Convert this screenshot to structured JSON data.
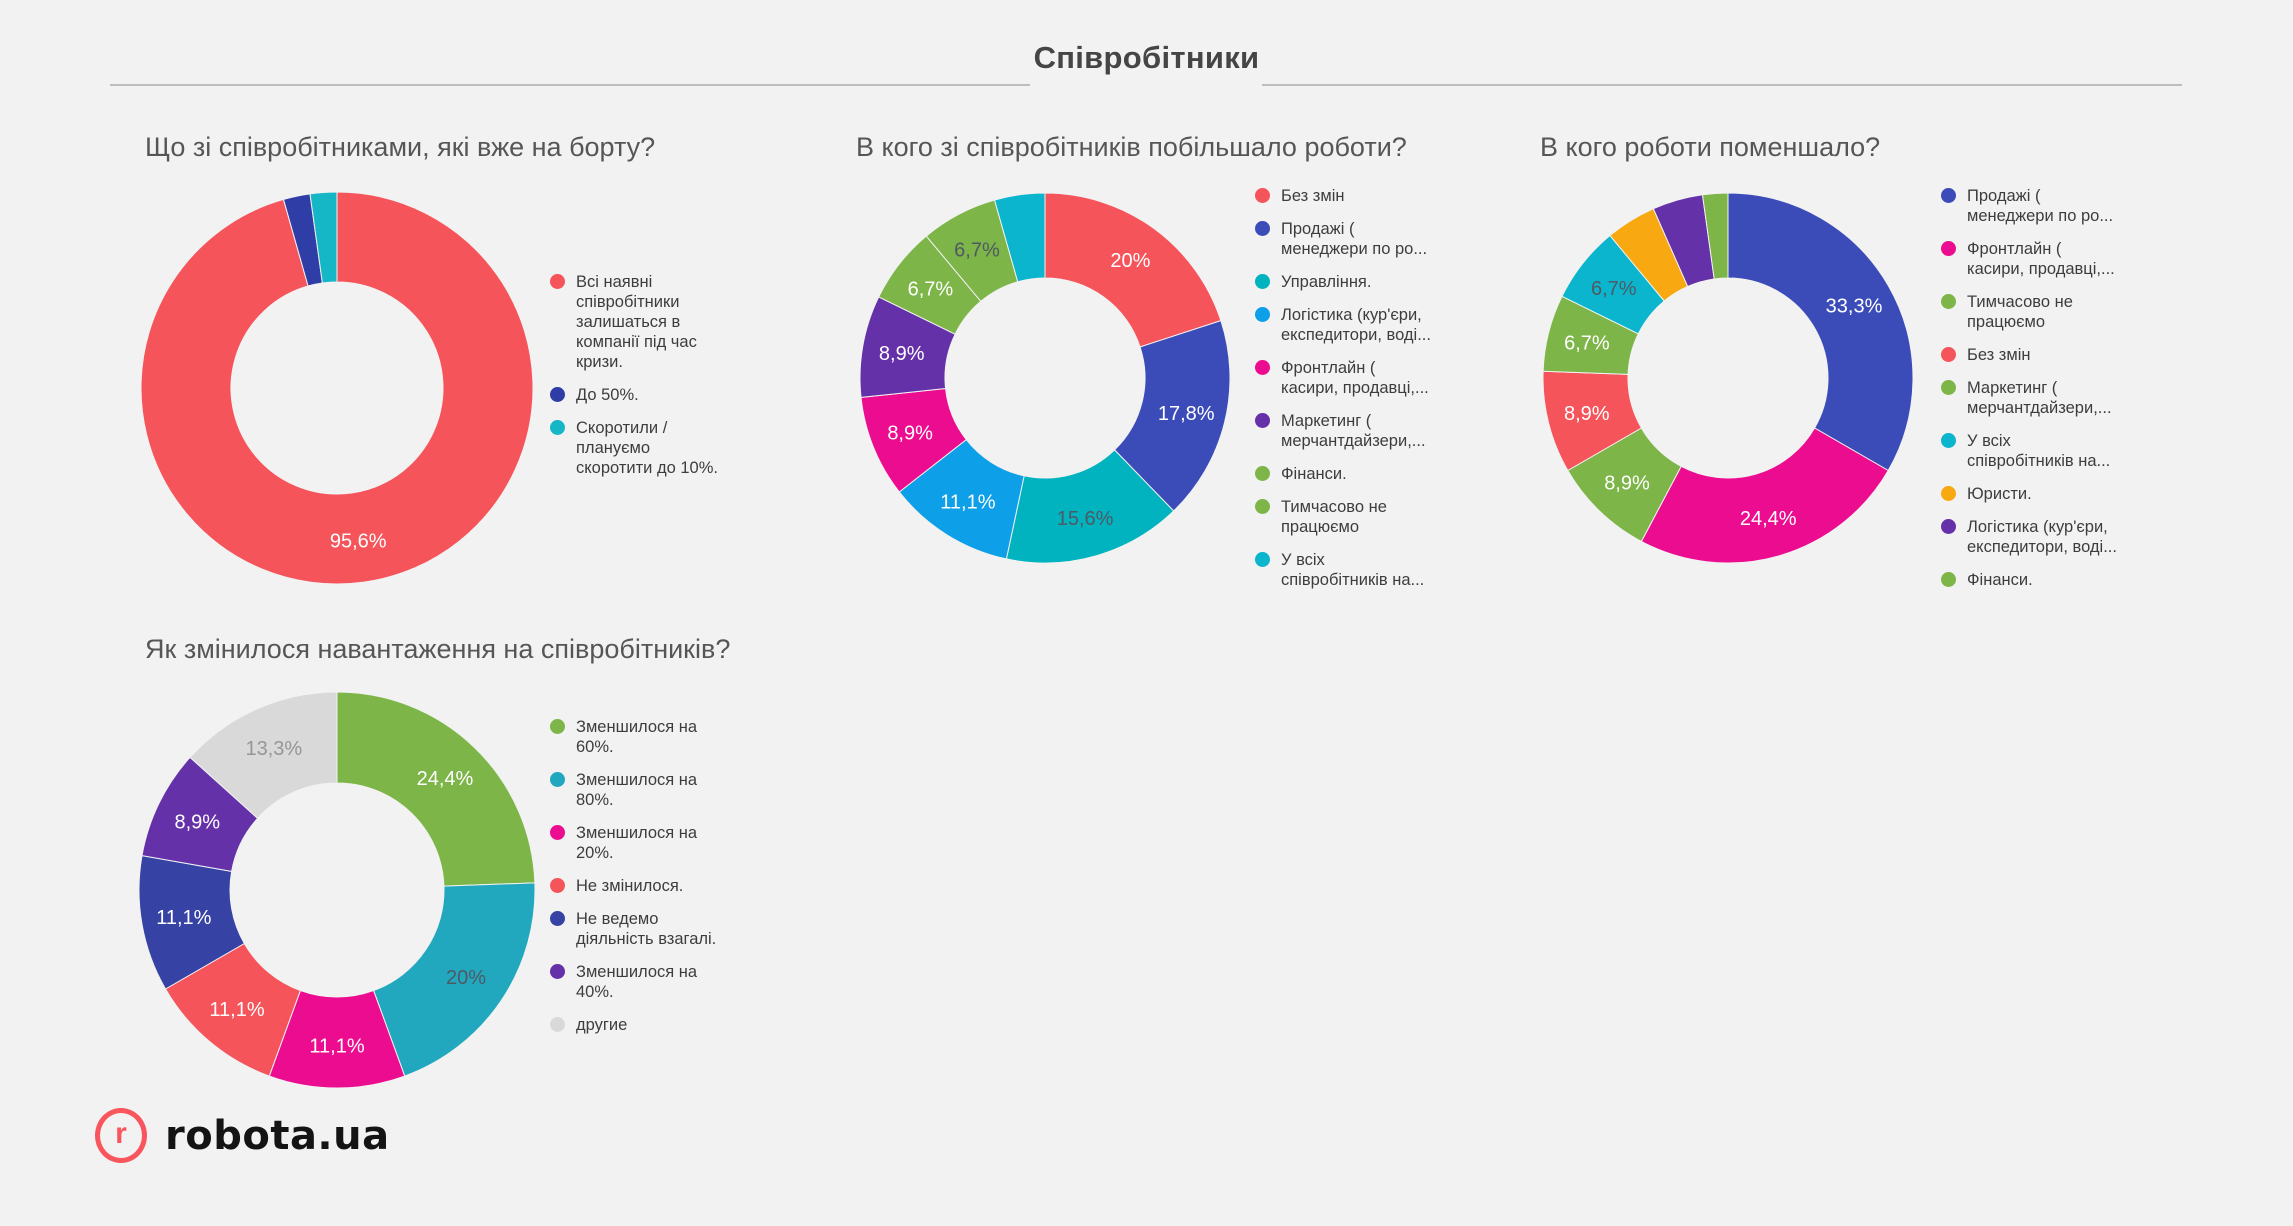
{
  "page": {
    "title": "Співробітники"
  },
  "logo": {
    "mark": "r",
    "text": "robota.ua",
    "accent_color": "#f8555c"
  },
  "background_color": "#f2f2f2",
  "chart_data": [
    {
      "type": "pie",
      "subtype": "donut",
      "title": "Що зі співробітниками, які вже на борту?",
      "legend_position": "right",
      "slices": [
        {
          "label": "Всі наявні співробітники залишаться в компанії під час кризи.",
          "lines": [
            "Всі наявні",
            "співробітники",
            "залишаться в",
            "компанії під час",
            "кризи."
          ],
          "value": 95.6,
          "display": "95,6%",
          "color": "#f6545b",
          "label_color": "#ffffff"
        },
        {
          "label": "До 50%.",
          "lines": [
            "До 50%."
          ],
          "value": 2.2,
          "display": "",
          "color": "#2f3ea6"
        },
        {
          "label": "Скоротили / плануємо скоротити до 10%.",
          "lines": [
            "Скоротили /",
            "плануємо",
            "скоротити до 10%."
          ],
          "value": 2.2,
          "display": "",
          "color": "#15b7c6"
        }
      ]
    },
    {
      "type": "pie",
      "subtype": "donut",
      "title": "В кого зі співробітників побільшало роботи?",
      "legend_position": "right",
      "slices": [
        {
          "label": "Без змін",
          "lines": [
            "Без змін"
          ],
          "value": 20,
          "display": "20%",
          "color": "#f6545b",
          "label_color": "#ffffff"
        },
        {
          "label": "Продажі ( менеджери по ро...",
          "lines": [
            "Продажі (",
            "менеджери по ро..."
          ],
          "value": 17.8,
          "display": "17,8%",
          "color": "#3b4cb8",
          "label_color": "#ffffff"
        },
        {
          "label": "Управління.",
          "lines": [
            "Управління."
          ],
          "value": 15.6,
          "display": "15,6%",
          "color": "#00b3bf",
          "label_color": "#4e5a63"
        },
        {
          "label": "Логістика (кур'єри, експедитори, воді...",
          "lines": [
            "Логістика (кур'єри,",
            "експедитори, воді..."
          ],
          "value": 11.1,
          "display": "11,1%",
          "color": "#0d9fe8",
          "label_color": "#ffffff"
        },
        {
          "label": "Фронтлайн ( касири, продавці,...",
          "lines": [
            "Фронтлайн (",
            "касири, продавці,..."
          ],
          "value": 8.9,
          "display": "8,9%",
          "color": "#ec0c8f",
          "label_color": "#ffffff"
        },
        {
          "label": "Маркетинг ( мерчантдайзери,...",
          "lines": [
            "Маркетинг (",
            "мерчантдайзери,..."
          ],
          "value": 8.9,
          "display": "8,9%",
          "color": "#6531a9",
          "label_color": "#ffffff"
        },
        {
          "label": "Фінанси.",
          "lines": [
            "Фінанси."
          ],
          "value": 6.7,
          "display": "6,7%",
          "color": "#7db548",
          "label_color": "#ffffff"
        },
        {
          "label": "Тимчасово не працюємо",
          "lines": [
            "Тимчасово не",
            "працюємо"
          ],
          "value": 6.7,
          "display": "6,7%",
          "color": "#7db548",
          "label_color": "#4e5a63"
        },
        {
          "label": "У всіх співробітників на...",
          "lines": [
            "У всіх",
            "співробітників на..."
          ],
          "value": 4.4,
          "display": "",
          "color": "#0ab5cd"
        }
      ]
    },
    {
      "type": "pie",
      "subtype": "donut",
      "title": "В кого роботи поменшало?",
      "legend_position": "right",
      "slices": [
        {
          "label": "Продажі ( менеджери по ро...",
          "lines": [
            "Продажі (",
            "менеджери по ро..."
          ],
          "value": 33.3,
          "display": "33,3%",
          "color": "#3b4cb8",
          "label_color": "#ffffff"
        },
        {
          "label": "Фронтлайн ( касири, продавці,...",
          "lines": [
            "Фронтлайн (",
            "касири, продавці,..."
          ],
          "value": 24.4,
          "display": "24,4%",
          "color": "#ec0c8f",
          "label_color": "#ffffff"
        },
        {
          "label": "Тимчасово не працюємо",
          "lines": [
            "Тимчасово не",
            "працюємо"
          ],
          "value": 8.9,
          "display": "8,9%",
          "color": "#7db548",
          "label_color": "#ffffff"
        },
        {
          "label": "Без змін",
          "lines": [
            "Без змін"
          ],
          "value": 8.9,
          "display": "8,9%",
          "color": "#f6545b",
          "label_color": "#ffffff"
        },
        {
          "label": "Маркетинг ( мерчантдайзери,...",
          "lines": [
            "Маркетинг (",
            "мерчантдайзери,..."
          ],
          "value": 6.7,
          "display": "6,7%",
          "color": "#7db548",
          "label_color": "#ffffff"
        },
        {
          "label": "У всіх співробітників на...",
          "lines": [
            "У всіх",
            "співробітників на..."
          ],
          "value": 6.7,
          "display": "6,7%",
          "color": "#0ab5cd",
          "label_color": "#4e5a63"
        },
        {
          "label": "Юристи.",
          "lines": [
            "Юристи."
          ],
          "value": 4.4,
          "display": "",
          "color": "#f8a912"
        },
        {
          "label": "Логістика (кур'єри, експедитори, воді...",
          "lines": [
            "Логістика (кур'єри,",
            "експедитори, воді..."
          ],
          "value": 4.4,
          "display": "",
          "color": "#6531a9"
        },
        {
          "label": "Фінанси.",
          "lines": [
            "Фінанси."
          ],
          "value": 2.2,
          "display": "",
          "color": "#7db548"
        }
      ]
    },
    {
      "type": "pie",
      "subtype": "donut",
      "title": "Як змінилося навантаження на співробітників?",
      "legend_position": "right",
      "slices": [
        {
          "label": "Зменшилося на 60%.",
          "lines": [
            "Зменшилося на",
            "60%."
          ],
          "value": 24.4,
          "display": "24,4%",
          "color": "#7db548",
          "label_color": "#ffffff"
        },
        {
          "label": "Зменшилося на 80%.",
          "lines": [
            "Зменшилося на",
            "80%."
          ],
          "value": 20,
          "display": "20%",
          "color": "#22a8be",
          "label_color": "#4e5a63"
        },
        {
          "label": "Зменшилося на 20%.",
          "lines": [
            "Зменшилося на",
            "20%."
          ],
          "value": 11.1,
          "display": "11,1%",
          "color": "#ec0c8f",
          "label_color": "#ffffff"
        },
        {
          "label": "Не змінилося.",
          "lines": [
            "Не змінилося."
          ],
          "value": 11.1,
          "display": "11,1%",
          "color": "#f6545b",
          "label_color": "#ffffff"
        },
        {
          "label": "Не ведемо діяльність взагалі.",
          "lines": [
            "Не ведемо",
            "діяльність взагалі."
          ],
          "value": 11.1,
          "display": "11,1%",
          "color": "#3643a4",
          "label_color": "#ffffff"
        },
        {
          "label": "Зменшилося на 40%.",
          "lines": [
            "Зменшилося на",
            "40%."
          ],
          "value": 8.9,
          "display": "8,9%",
          "color": "#6531a9",
          "label_color": "#ffffff"
        },
        {
          "label": "другие",
          "lines": [
            "другие"
          ],
          "value": 13.3,
          "display": "13,3%",
          "color": "#d9d9d9",
          "label_color": "#969696"
        }
      ]
    }
  ]
}
